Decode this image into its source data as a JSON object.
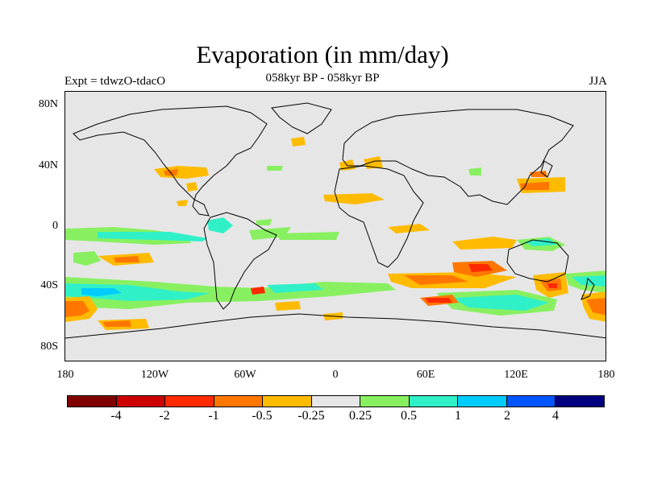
{
  "title": "Evaporation (in mm/day)",
  "left_label": "Expt = tdwzO-tdacO",
  "center_label": "058kyr BP - 058kyr BP",
  "right_label": "JJA",
  "y_ticks": [
    "80N",
    "40N",
    "0",
    "40S",
    "80S"
  ],
  "x_ticks": [
    "180",
    "120W",
    "60W",
    "0",
    "60E",
    "120E",
    "180"
  ],
  "colorbar": {
    "colors": [
      "#800000",
      "#cc0000",
      "#ff2a00",
      "#ff7700",
      "#ffbb00",
      "#e6e6e6",
      "#88f060",
      "#30f0c8",
      "#00ccff",
      "#0055ff",
      "#000080"
    ],
    "labels": [
      "-4",
      "-2",
      "-1",
      "-0.5",
      "-0.25",
      "0.25",
      "0.5",
      "1",
      "2",
      "4"
    ]
  },
  "map": {
    "background_color": "#e6e6e6",
    "anomaly_colors": {
      "orange": "#ffbb00",
      "dark_orange": "#ff7700",
      "red": "#ff2a00",
      "green": "#88f060",
      "cyan": "#30f0c8",
      "light_blue": "#00ccff"
    }
  }
}
